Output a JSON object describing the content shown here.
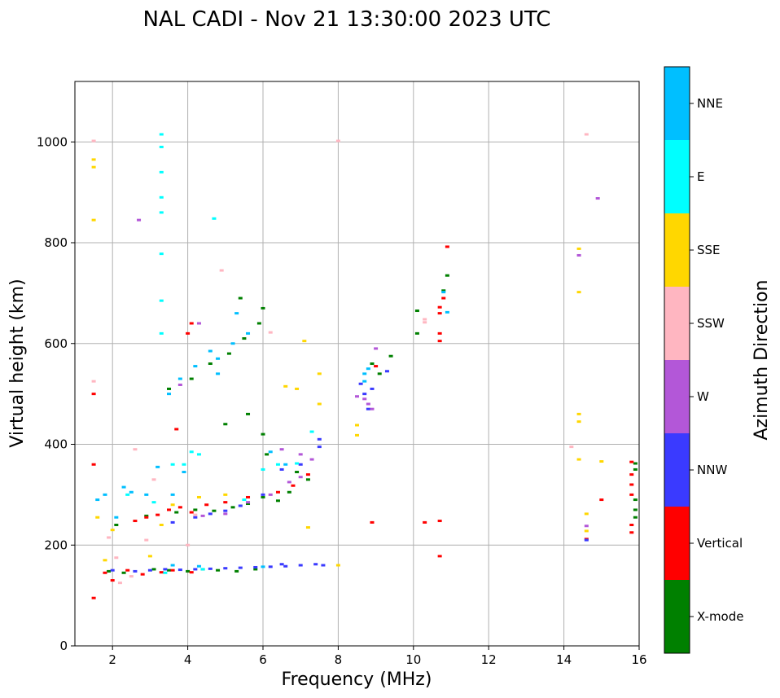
{
  "chart_data": {
    "type": "scatter",
    "title": "NAL CADI - Nov 21 13:30:00 2023 UTC",
    "xlabel": "Frequency (MHz)",
    "ylabel": "Virtual height (km)",
    "xlim": [
      1,
      16
    ],
    "ylim": [
      0,
      1120
    ],
    "xticks": [
      2,
      4,
      6,
      8,
      10,
      12,
      14,
      16
    ],
    "yticks": [
      0,
      200,
      400,
      600,
      800,
      1000
    ],
    "grid": true,
    "colorbar": {
      "label": "Azimuth Direction",
      "position": "right",
      "categories": [
        {
          "name": "X-mode",
          "color": "#008000"
        },
        {
          "name": "Vertical",
          "color": "#ff0000"
        },
        {
          "name": "NNW",
          "color": "#3a3aff"
        },
        {
          "name": "W",
          "color": "#b357d8"
        },
        {
          "name": "SSW",
          "color": "#ffb6c1"
        },
        {
          "name": "SSE",
          "color": "#ffd700"
        },
        {
          "name": "E",
          "color": "#00ffff"
        },
        {
          "name": "NNE",
          "color": "#00bfff"
        }
      ]
    },
    "series": [
      {
        "name": "X-mode",
        "points": [
          [
            1.9,
            148
          ],
          [
            2.3,
            145
          ],
          [
            3.1,
            152
          ],
          [
            3.5,
            150
          ],
          [
            4.0,
            148
          ],
          [
            4.4,
            152
          ],
          [
            4.8,
            150
          ],
          [
            5.3,
            148
          ],
          [
            5.8,
            152
          ],
          [
            2.1,
            240
          ],
          [
            2.9,
            258
          ],
          [
            3.7,
            265
          ],
          [
            4.2,
            270
          ],
          [
            4.7,
            268
          ],
          [
            5.2,
            275
          ],
          [
            5.6,
            282
          ],
          [
            6.0,
            295
          ],
          [
            6.4,
            288
          ],
          [
            6.7,
            305
          ],
          [
            3.5,
            510
          ],
          [
            4.1,
            530
          ],
          [
            4.6,
            560
          ],
          [
            5.1,
            580
          ],
          [
            5.5,
            610
          ],
          [
            5.9,
            640
          ],
          [
            6.0,
            670
          ],
          [
            5.4,
            690
          ],
          [
            5.0,
            440
          ],
          [
            5.6,
            460
          ],
          [
            6.0,
            420
          ],
          [
            6.1,
            380
          ],
          [
            8.9,
            560
          ],
          [
            9.1,
            540
          ],
          [
            9.4,
            575
          ],
          [
            10.1,
            620
          ],
          [
            10.1,
            665
          ],
          [
            10.8,
            705
          ],
          [
            10.9,
            735
          ],
          [
            15.9,
            290
          ],
          [
            15.9,
            270
          ],
          [
            15.9,
            255
          ],
          [
            15.9,
            350
          ],
          [
            15.9,
            362
          ],
          [
            7.2,
            330
          ],
          [
            6.9,
            345
          ]
        ]
      },
      {
        "name": "Vertical",
        "points": [
          [
            1.5,
            95
          ],
          [
            1.5,
            360
          ],
          [
            1.5,
            500
          ],
          [
            1.8,
            145
          ],
          [
            2.0,
            130
          ],
          [
            2.4,
            150
          ],
          [
            2.8,
            142
          ],
          [
            3.3,
            146
          ],
          [
            3.6,
            150
          ],
          [
            4.1,
            146
          ],
          [
            2.6,
            248
          ],
          [
            2.9,
            255
          ],
          [
            3.2,
            260
          ],
          [
            3.5,
            270
          ],
          [
            3.8,
            275
          ],
          [
            4.1,
            265
          ],
          [
            4.5,
            280
          ],
          [
            5.0,
            285
          ],
          [
            5.6,
            295
          ],
          [
            6.4,
            305
          ],
          [
            6.8,
            318
          ],
          [
            7.2,
            340
          ],
          [
            3.7,
            430
          ],
          [
            4.0,
            620
          ],
          [
            4.1,
            640
          ],
          [
            8.9,
            245
          ],
          [
            9.0,
            555
          ],
          [
            10.3,
            245
          ],
          [
            10.7,
            248
          ],
          [
            10.7,
            178
          ],
          [
            10.7,
            605
          ],
          [
            10.7,
            620
          ],
          [
            10.7,
            660
          ],
          [
            10.7,
            672
          ],
          [
            10.8,
            690
          ],
          [
            10.9,
            792
          ],
          [
            15.0,
            290
          ],
          [
            15.8,
            300
          ],
          [
            15.8,
            320
          ],
          [
            15.8,
            340
          ],
          [
            15.8,
            365
          ],
          [
            15.8,
            225
          ],
          [
            15.8,
            240
          ],
          [
            14.6,
            212
          ]
        ]
      },
      {
        "name": "NNW",
        "points": [
          [
            2.0,
            150
          ],
          [
            2.6,
            148
          ],
          [
            3.0,
            150
          ],
          [
            3.4,
            152
          ],
          [
            3.8,
            151
          ],
          [
            4.2,
            152
          ],
          [
            4.6,
            153
          ],
          [
            5.0,
            154
          ],
          [
            5.4,
            155
          ],
          [
            5.8,
            156
          ],
          [
            6.2,
            157
          ],
          [
            6.6,
            158
          ],
          [
            7.0,
            160
          ],
          [
            7.4,
            162
          ],
          [
            7.6,
            160
          ],
          [
            6.5,
            162
          ],
          [
            3.6,
            245
          ],
          [
            4.2,
            255
          ],
          [
            4.6,
            262
          ],
          [
            5.0,
            268
          ],
          [
            5.4,
            278
          ],
          [
            6.0,
            300
          ],
          [
            6.5,
            350
          ],
          [
            7.0,
            360
          ],
          [
            7.5,
            395
          ],
          [
            7.5,
            410
          ],
          [
            8.6,
            520
          ],
          [
            8.7,
            500
          ],
          [
            8.8,
            470
          ],
          [
            8.9,
            510
          ],
          [
            9.3,
            545
          ],
          [
            14.6,
            210
          ]
        ]
      },
      {
        "name": "W",
        "points": [
          [
            2.7,
            845
          ],
          [
            4.3,
            640
          ],
          [
            3.8,
            518
          ],
          [
            4.4,
            258
          ],
          [
            5.0,
            262
          ],
          [
            5.6,
            285
          ],
          [
            6.2,
            300
          ],
          [
            6.7,
            325
          ],
          [
            7.0,
            335
          ],
          [
            7.3,
            370
          ],
          [
            7.0,
            380
          ],
          [
            6.5,
            390
          ],
          [
            8.5,
            495
          ],
          [
            8.7,
            490
          ],
          [
            8.8,
            480
          ],
          [
            8.9,
            470
          ],
          [
            9.0,
            590
          ],
          [
            14.4,
            775
          ],
          [
            14.9,
            888
          ],
          [
            14.6,
            238
          ]
        ]
      },
      {
        "name": "SSW",
        "points": [
          [
            1.5,
            1002
          ],
          [
            1.5,
            525
          ],
          [
            1.9,
            215
          ],
          [
            2.1,
            175
          ],
          [
            2.2,
            125
          ],
          [
            2.5,
            138
          ],
          [
            2.6,
            390
          ],
          [
            2.9,
            210
          ],
          [
            3.1,
            330
          ],
          [
            4.0,
            200
          ],
          [
            4.2,
            260
          ],
          [
            4.9,
            745
          ],
          [
            6.2,
            622
          ],
          [
            8.0,
            1002
          ],
          [
            10.3,
            648
          ],
          [
            10.3,
            642
          ],
          [
            14.6,
            1015
          ],
          [
            14.2,
            395
          ]
        ]
      },
      {
        "name": "SSE",
        "points": [
          [
            1.5,
            965
          ],
          [
            1.5,
            950
          ],
          [
            1.5,
            845
          ],
          [
            1.8,
            170
          ],
          [
            1.6,
            255
          ],
          [
            2.0,
            230
          ],
          [
            3.0,
            178
          ],
          [
            3.3,
            240
          ],
          [
            3.6,
            280
          ],
          [
            4.3,
            295
          ],
          [
            5.0,
            300
          ],
          [
            6.6,
            515
          ],
          [
            6.9,
            510
          ],
          [
            7.1,
            605
          ],
          [
            7.5,
            540
          ],
          [
            7.5,
            480
          ],
          [
            7.2,
            235
          ],
          [
            8.0,
            160
          ],
          [
            8.5,
            438
          ],
          [
            8.5,
            418
          ],
          [
            14.4,
            788
          ],
          [
            14.4,
            702
          ],
          [
            14.4,
            460
          ],
          [
            14.4,
            445
          ],
          [
            14.4,
            370
          ],
          [
            15.0,
            366
          ],
          [
            14.6,
            262
          ],
          [
            14.6,
            228
          ]
        ]
      },
      {
        "name": "E",
        "points": [
          [
            3.3,
            1015
          ],
          [
            3.3,
            990
          ],
          [
            3.3,
            940
          ],
          [
            3.3,
            890
          ],
          [
            3.3,
            860
          ],
          [
            3.3,
            778
          ],
          [
            3.3,
            685
          ],
          [
            3.3,
            620
          ],
          [
            4.7,
            848
          ],
          [
            3.6,
            360
          ],
          [
            3.9,
            360
          ],
          [
            4.1,
            385
          ],
          [
            4.3,
            380
          ],
          [
            2.4,
            300
          ],
          [
            3.1,
            285
          ],
          [
            5.5,
            290
          ],
          [
            6.0,
            350
          ],
          [
            6.4,
            360
          ],
          [
            6.9,
            362
          ],
          [
            7.3,
            425
          ],
          [
            3.4,
            145
          ],
          [
            4.4,
            152
          ]
        ]
      },
      {
        "name": "NNE",
        "points": [
          [
            1.6,
            290
          ],
          [
            1.8,
            300
          ],
          [
            2.1,
            255
          ],
          [
            2.3,
            315
          ],
          [
            2.5,
            305
          ],
          [
            2.9,
            300
          ],
          [
            3.2,
            355
          ],
          [
            3.6,
            300
          ],
          [
            3.9,
            345
          ],
          [
            3.5,
            500
          ],
          [
            3.8,
            530
          ],
          [
            4.2,
            555
          ],
          [
            4.6,
            585
          ],
          [
            4.8,
            570
          ],
          [
            5.2,
            600
          ],
          [
            5.6,
            620
          ],
          [
            4.8,
            540
          ],
          [
            6.2,
            385
          ],
          [
            6.6,
            360
          ],
          [
            8.7,
            540
          ],
          [
            8.7,
            525
          ],
          [
            8.8,
            550
          ],
          [
            10.8,
            702
          ],
          [
            10.9,
            662
          ],
          [
            5.3,
            660
          ],
          [
            3.6,
            160
          ],
          [
            4.3,
            158
          ],
          [
            6.0,
            157
          ]
        ]
      }
    ]
  }
}
